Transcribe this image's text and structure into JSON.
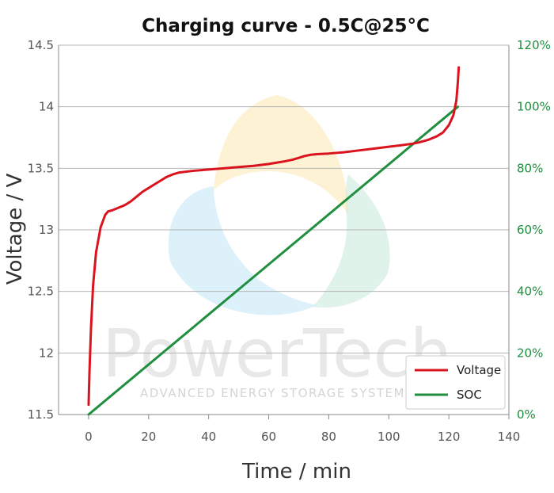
{
  "chart_data": {
    "type": "line",
    "title": "Charging curve - 0.5C@25°C",
    "xlabel": "Time / min",
    "ylabel": "Voltage / V",
    "xlim": [
      -10,
      140
    ],
    "ylim": [
      11.5,
      14.5
    ],
    "y2lim": [
      0,
      120
    ],
    "xticks": [
      "0",
      "20",
      "40",
      "60",
      "80",
      "100",
      "120",
      "140"
    ],
    "yticks": [
      "11.5",
      "12",
      "12.5",
      "13",
      "13.5",
      "14",
      "14.5"
    ],
    "y2ticks": [
      "0%",
      "20%",
      "40%",
      "60%",
      "80%",
      "100%",
      "120%"
    ],
    "grid": "horizontal",
    "legend_position": "bottom-right",
    "series": [
      {
        "name": "Voltage",
        "axis": "left",
        "color": "#d9141e",
        "x": [
          0,
          0.3,
          0.8,
          1.5,
          2.5,
          4,
          5.5,
          6.5,
          8,
          10,
          12,
          14,
          16,
          18,
          20,
          22,
          24,
          26,
          28,
          30,
          35,
          40,
          45,
          50,
          55,
          60,
          65,
          68,
          70,
          72,
          74,
          76,
          80,
          85,
          90,
          95,
          100,
          105,
          108,
          110,
          113,
          116,
          118,
          120,
          121.5,
          122.5,
          123,
          123.3
        ],
        "y": [
          11.58,
          11.85,
          12.2,
          12.55,
          12.82,
          13.02,
          13.12,
          13.15,
          13.16,
          13.18,
          13.2,
          13.23,
          13.27,
          13.31,
          13.34,
          13.37,
          13.4,
          13.43,
          13.45,
          13.465,
          13.48,
          13.49,
          13.5,
          13.51,
          13.52,
          13.535,
          13.555,
          13.57,
          13.585,
          13.6,
          13.61,
          13.615,
          13.62,
          13.63,
          13.645,
          13.66,
          13.675,
          13.69,
          13.7,
          13.71,
          13.73,
          13.76,
          13.79,
          13.85,
          13.93,
          14.05,
          14.2,
          14.32
        ]
      },
      {
        "name": "SOC",
        "axis": "right",
        "color": "#1f8f3f",
        "x": [
          0,
          123
        ],
        "y": [
          0,
          100
        ]
      }
    ]
  },
  "watermark": {
    "brand": "PowerTech",
    "tagline": "ADVANCED ENERGY STORAGE SYSTEMS"
  }
}
